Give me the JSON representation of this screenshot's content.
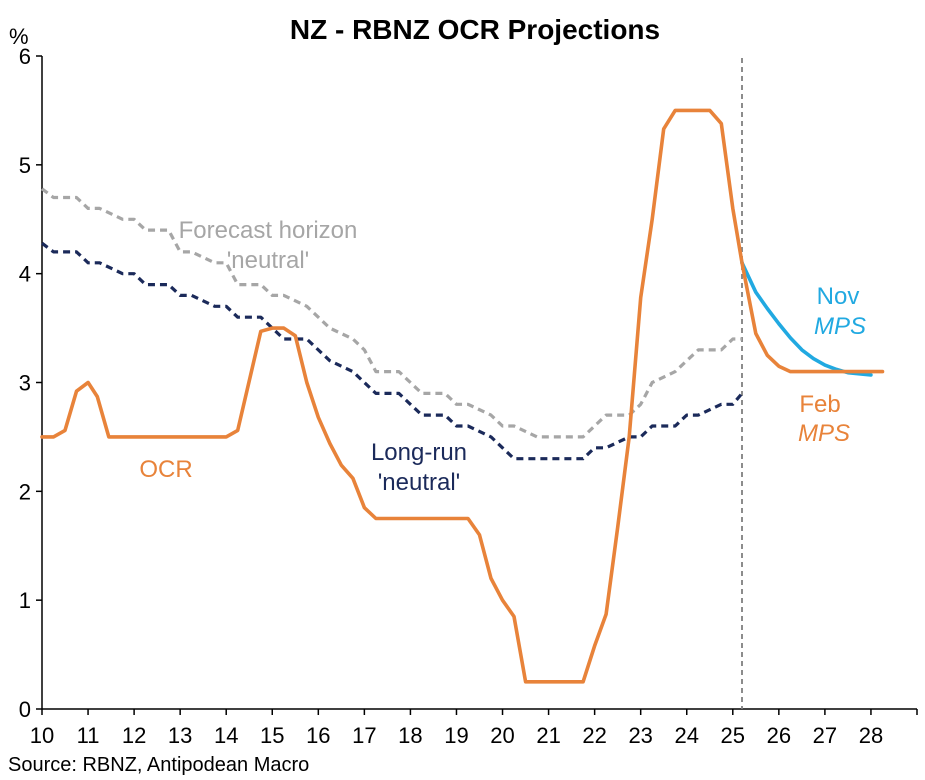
{
  "chart_data": {
    "type": "line",
    "title": "NZ - RBNZ OCR Projections",
    "ylabel": "%",
    "xlim": [
      10,
      29
    ],
    "ylim": [
      0,
      6
    ],
    "x_ticks": [
      10,
      11,
      12,
      13,
      14,
      15,
      16,
      17,
      18,
      19,
      20,
      21,
      22,
      23,
      24,
      25,
      26,
      27,
      28
    ],
    "x_tick_labels": [
      "10",
      "11",
      "12",
      "13",
      "14",
      "15",
      "16",
      "17",
      "18",
      "19",
      "20",
      "21",
      "22",
      "23",
      "24",
      "25",
      "26",
      "27",
      "28"
    ],
    "y_ticks": [
      0,
      1,
      2,
      3,
      4,
      5,
      6
    ],
    "y_tick_labels": [
      "0",
      "1",
      "2",
      "3",
      "4",
      "5",
      "6"
    ],
    "grid": false,
    "forecast_divider_x": 25.2,
    "series": [
      {
        "name": "OCR",
        "color": "#E8833A",
        "style": "solid",
        "x": [
          10,
          10.25,
          10.5,
          10.75,
          11,
          11.2,
          11.45,
          12,
          13,
          14,
          14.25,
          14.75,
          15,
          15.25,
          15.5,
          15.75,
          16,
          16.25,
          16.5,
          16.75,
          17,
          17.25,
          17.5,
          18,
          19,
          19.25,
          19.5,
          19.75,
          20,
          20.25,
          20.5,
          21,
          21.75,
          22,
          22.25,
          22.5,
          22.75,
          23,
          23.25,
          23.5,
          23.75,
          24,
          24.5,
          24.75,
          25,
          25.2
        ],
        "values": [
          2.5,
          2.5,
          2.56,
          2.92,
          3.0,
          2.87,
          2.5,
          2.5,
          2.5,
          2.5,
          2.56,
          3.47,
          3.5,
          3.5,
          3.43,
          3.0,
          2.68,
          2.44,
          2.24,
          2.12,
          1.85,
          1.75,
          1.75,
          1.75,
          1.75,
          1.75,
          1.6,
          1.2,
          1.0,
          0.85,
          0.25,
          0.25,
          0.25,
          0.58,
          0.87,
          1.67,
          2.5,
          3.78,
          4.5,
          5.33,
          5.5,
          5.5,
          5.5,
          5.38,
          4.6,
          4.1
        ]
      },
      {
        "name": "Long-run 'neutral'",
        "color": "#1B2A5A",
        "style": "dashed",
        "x": [
          10,
          10.25,
          10.75,
          11,
          11.25,
          11.75,
          12,
          12.25,
          12.75,
          13,
          13.25,
          13.75,
          14,
          14.25,
          14.75,
          15,
          15.25,
          15.75,
          16,
          16.25,
          16.75,
          17,
          17.25,
          17.75,
          18,
          18.25,
          18.75,
          19,
          19.25,
          19.75,
          20,
          20.25,
          20.75,
          21,
          21.25,
          21.75,
          22,
          22.25,
          22.75,
          23,
          23.25,
          23.75,
          24,
          24.25,
          24.75,
          25,
          25.2
        ],
        "values": [
          4.28,
          4.2,
          4.2,
          4.1,
          4.1,
          4.0,
          4.0,
          3.9,
          3.9,
          3.8,
          3.8,
          3.7,
          3.7,
          3.6,
          3.6,
          3.5,
          3.4,
          3.4,
          3.3,
          3.2,
          3.1,
          3.0,
          2.9,
          2.9,
          2.8,
          2.7,
          2.7,
          2.6,
          2.6,
          2.5,
          2.4,
          2.3,
          2.3,
          2.3,
          2.3,
          2.3,
          2.4,
          2.4,
          2.5,
          2.5,
          2.6,
          2.6,
          2.7,
          2.7,
          2.8,
          2.8,
          2.9
        ]
      },
      {
        "name": "Forecast horizon 'neutral'",
        "color": "#A6A6A6",
        "style": "dashed",
        "x": [
          10,
          10.25,
          10.75,
          11,
          11.25,
          11.75,
          12,
          12.25,
          12.75,
          13,
          13.25,
          13.75,
          14,
          14.25,
          14.75,
          15,
          15.25,
          15.75,
          16,
          16.25,
          16.75,
          17,
          17.25,
          17.75,
          18,
          18.25,
          18.75,
          19,
          19.25,
          19.75,
          20,
          20.25,
          20.75,
          21,
          21.25,
          21.75,
          22,
          22.25,
          22.75,
          23,
          23.25,
          23.75,
          24,
          24.25,
          24.75,
          25,
          25.2
        ],
        "values": [
          4.78,
          4.7,
          4.7,
          4.6,
          4.6,
          4.5,
          4.5,
          4.4,
          4.4,
          4.2,
          4.2,
          4.1,
          4.1,
          3.9,
          3.9,
          3.8,
          3.8,
          3.7,
          3.6,
          3.5,
          3.4,
          3.3,
          3.1,
          3.1,
          3.0,
          2.9,
          2.9,
          2.8,
          2.8,
          2.7,
          2.6,
          2.6,
          2.5,
          2.5,
          2.5,
          2.5,
          2.6,
          2.7,
          2.7,
          2.8,
          3.0,
          3.1,
          3.2,
          3.3,
          3.3,
          3.4,
          3.4
        ]
      },
      {
        "name": "Nov MPS",
        "color": "#21A9E1",
        "style": "solid",
        "x": [
          25.2,
          25.5,
          25.75,
          26,
          26.25,
          26.5,
          26.75,
          27,
          27.25,
          27.5,
          28
        ],
        "values": [
          4.1,
          3.83,
          3.68,
          3.54,
          3.41,
          3.3,
          3.22,
          3.16,
          3.12,
          3.09,
          3.07
        ]
      },
      {
        "name": "Feb MPS",
        "color": "#E8833A",
        "style": "solid",
        "x": [
          25.2,
          25.5,
          25.75,
          26,
          26.25,
          26.5,
          27,
          28,
          28.25
        ],
        "values": [
          4.1,
          3.45,
          3.25,
          3.15,
          3.1,
          3.1,
          3.1,
          3.1,
          3.1
        ]
      }
    ],
    "annotations": {
      "ocr": "OCR",
      "longrun_line1": "Long-run",
      "longrun_line2": "'neutral'",
      "forecast_line1": "Forecast horizon",
      "forecast_line2": "'neutral'",
      "nov_line1": "Nov",
      "nov_line2": "MPS",
      "feb_line1": "Feb",
      "feb_line2": "MPS"
    },
    "source": "Source: RBNZ, Antipodean Macro"
  }
}
